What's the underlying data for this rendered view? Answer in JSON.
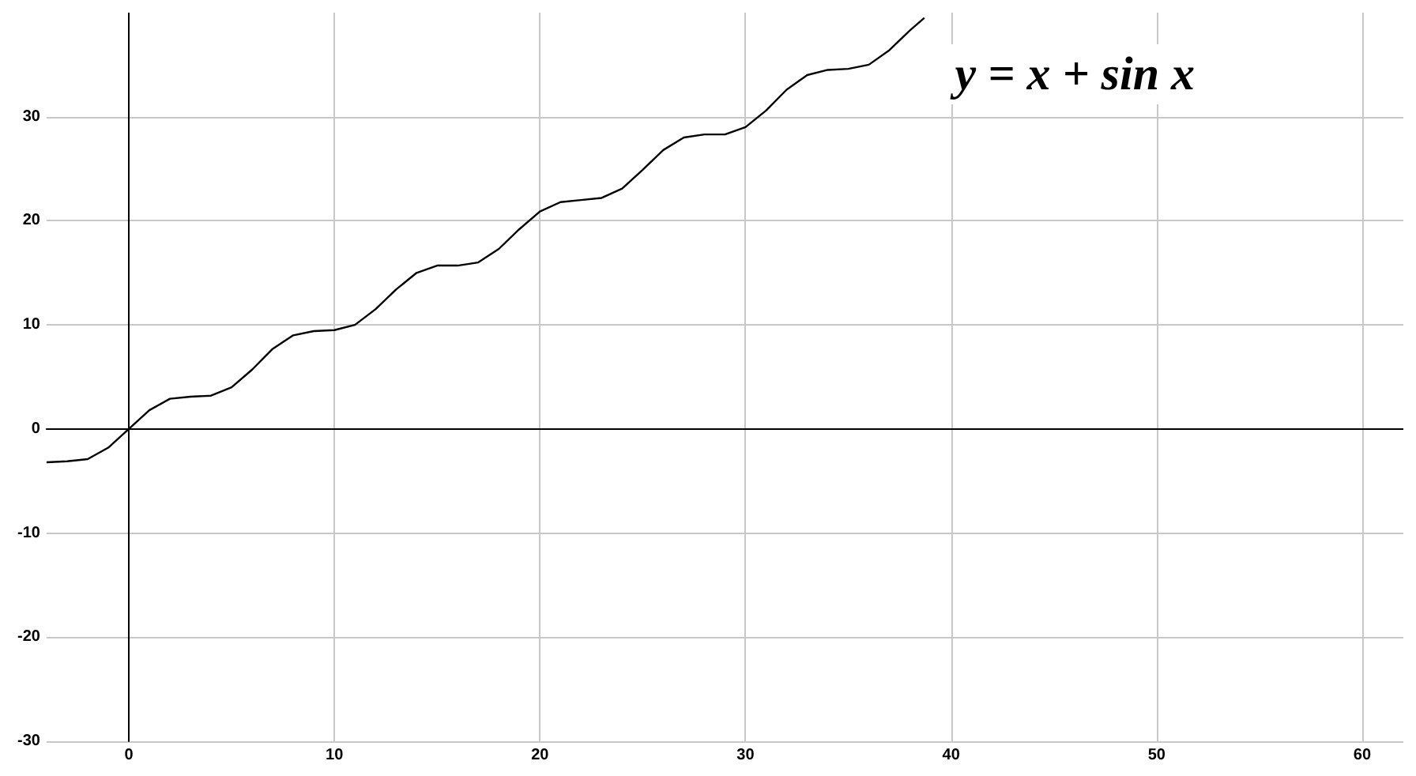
{
  "chart_data": {
    "type": "line",
    "annotations": [
      "y = x + sin x"
    ],
    "x": [
      -4,
      -3,
      -2,
      -1,
      0,
      1,
      2,
      3,
      4,
      5,
      6,
      7,
      8,
      9,
      10,
      11,
      12,
      13,
      14,
      15,
      16,
      17,
      18,
      19,
      20,
      21,
      22,
      23,
      24,
      25,
      26,
      27,
      28,
      29,
      30,
      31,
      32,
      33,
      34,
      35,
      36,
      37,
      38,
      38.7
    ],
    "series": [
      {
        "color": "#000000",
        "values": [
          -3.2,
          -3.1,
          -2.9,
          -1.8,
          0,
          1.8,
          2.9,
          3.1,
          3.2,
          4.0,
          5.7,
          7.7,
          9.0,
          9.4,
          9.5,
          10.0,
          11.5,
          13.4,
          15.0,
          15.7,
          15.7,
          16.0,
          17.3,
          19.2,
          20.9,
          21.8,
          22.0,
          22.2,
          23.1,
          24.9,
          26.8,
          28.0,
          28.3,
          28.3,
          29.0,
          30.6,
          32.6,
          34.0,
          34.5,
          34.6,
          35.0,
          36.4,
          38.3,
          39.5
        ]
      }
    ],
    "xlim": [
      -4,
      62
    ],
    "ylim": [
      -30,
      40
    ],
    "xticks": [
      0,
      10,
      20,
      30,
      40,
      50,
      60
    ],
    "yticks": [
      -30,
      -20,
      -10,
      0,
      10,
      20,
      30
    ],
    "grid": true,
    "marker": "none",
    "line_style": "solid"
  }
}
